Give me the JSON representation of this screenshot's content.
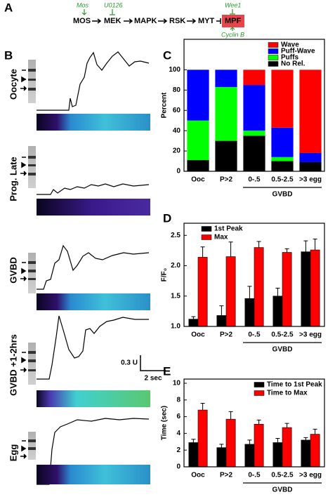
{
  "panel_labels": [
    "A",
    "B",
    "C",
    "D",
    "E"
  ],
  "pathway": {
    "nodes": [
      "MOS",
      "MEK",
      "MAPK",
      "RSK",
      "MYT",
      "MPF"
    ],
    "annotations": [
      "Mos",
      "U0126",
      "Wee1",
      "Cyclin B"
    ]
  },
  "traces": {
    "labels": [
      "Oocyte",
      "Prog. Late",
      "GVBD",
      "GVBD +1-2hrs",
      "Egg"
    ],
    "scale_y": "0.3 U",
    "scale_x": "2 sec"
  },
  "chart_data": [
    {
      "type": "stacked_bar",
      "ylabel": "Percent",
      "group_label": "GVBD",
      "categories": [
        "Ooc",
        "P>2",
        "0-.5",
        "0.5-2.5",
        ">3 egg"
      ],
      "ylim": [
        0,
        130
      ],
      "yticks": [
        0,
        20,
        40,
        60,
        80,
        100
      ],
      "legend": "top-right",
      "series": [
        {
          "name": "No Rel.",
          "color": "#000000",
          "values": [
            11,
            30,
            35,
            10,
            9
          ]
        },
        {
          "name": "Puffs",
          "color": "#00ff00",
          "values": [
            39,
            53,
            5,
            4,
            0
          ]
        },
        {
          "name": "Puff-Wave",
          "color": "#0000ff",
          "values": [
            50,
            17,
            45,
            29,
            9
          ]
        },
        {
          "name": "Wave",
          "color": "#ff0000",
          "values": [
            0,
            0,
            15,
            57,
            82
          ]
        }
      ]
    },
    {
      "type": "bar",
      "ylabel": "F/F₀",
      "group_label": "GVBD",
      "categories": [
        "Ooc",
        "P>2",
        "0-.5",
        "0.5-2.5",
        ">3 egg"
      ],
      "ylim": [
        1,
        2.7
      ],
      "yticks": [
        {
          "value": 1,
          "label": "1.0"
        },
        1.5,
        {
          "value": 2,
          "label": "2.0"
        },
        2.5
      ],
      "legend": "top-left",
      "series": [
        {
          "name": "1st Peak",
          "color": "#000000",
          "values": [
            1.12,
            1.18,
            1.46,
            1.5,
            2.23
          ],
          "errors": [
            0.04,
            0.16,
            0.2,
            0.13,
            0.18
          ]
        },
        {
          "name": "Max",
          "color": "#ff0000",
          "values": [
            2.14,
            2.15,
            2.3,
            2.22,
            2.26
          ],
          "errors": [
            0.17,
            0.24,
            0.1,
            0.06,
            0.18
          ]
        }
      ]
    },
    {
      "type": "bar",
      "ylabel": "Time (sec)",
      "group_label": "GVBD",
      "categories": [
        "Ooc",
        "P>2",
        "0-.5",
        "0.5-2.5",
        ">3 egg"
      ],
      "ylim": [
        0,
        10.5
      ],
      "yticks": [
        0,
        2,
        4,
        6,
        8,
        10
      ],
      "legend": "top-right",
      "series": [
        {
          "name": "Time to 1st Peak",
          "color": "#000000",
          "values": [
            2.9,
            2.3,
            2.7,
            2.9,
            3.2
          ],
          "errors": [
            0.4,
            0.4,
            0.5,
            0.5,
            0.3
          ]
        },
        {
          "name": "Time to Max",
          "color": "#ff0000",
          "values": [
            6.8,
            5.7,
            5.1,
            4.7,
            3.9
          ],
          "errors": [
            0.8,
            0.9,
            0.5,
            0.5,
            0.6
          ]
        }
      ]
    }
  ]
}
